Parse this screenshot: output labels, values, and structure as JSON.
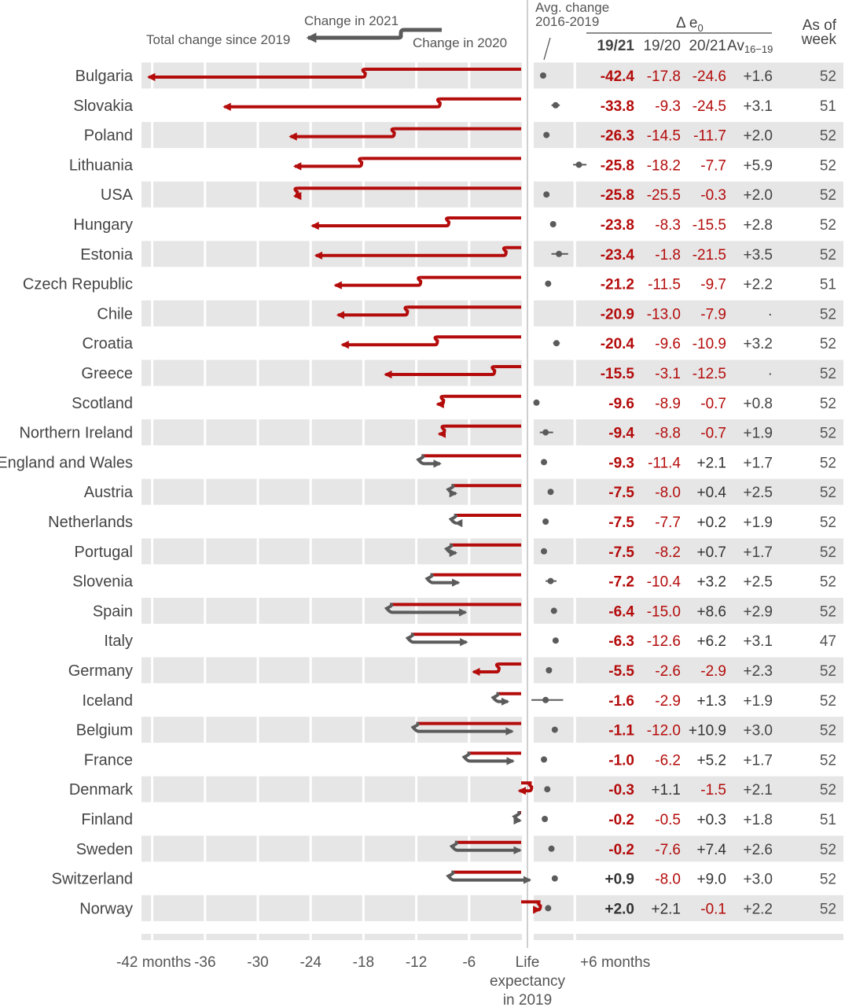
{
  "colors": {
    "red": "#b40b0b",
    "gray": "#5b5b5b",
    "band": "#e6e6e6",
    "text": "#444444"
  },
  "legend": {
    "change_2021": "Change in 2021",
    "total_change": "Total change since 2019",
    "change_2020": "Change in 2020",
    "avg_change": [
      "Avg. change",
      "2016-2019"
    ]
  },
  "table_header": {
    "delta": "Δ e",
    "delta_sub": "0",
    "col_1921": "19/21",
    "col_1920": "19/20",
    "col_2021": "20/21",
    "col_av": "Av",
    "col_av_sub": "16−19",
    "as_of": [
      "As of",
      "week"
    ]
  },
  "axis": {
    "ticks": [
      "-42 months",
      "-36",
      "-30",
      "-24",
      "-18",
      "-12",
      "-6",
      "Life",
      "+6 months"
    ],
    "tick_values": [
      -42,
      -36,
      -30,
      -24,
      -18,
      -12,
      -6,
      0,
      6
    ],
    "zero_label_extra": [
      "expectancy",
      "in 2019"
    ]
  },
  "chart_data": {
    "type": "arrow-dot-table",
    "x_unit": "months",
    "xlim": [
      -43.5,
      6.5
    ],
    "rows": [
      {
        "country": "Bulgaria",
        "d1921": "-42.4",
        "d1920": "-17.8",
        "d2021": "-24.6",
        "av": "+1.6",
        "week": "52",
        "c1920": -17.8,
        "c1921": -42.4,
        "avg": 1.6,
        "lo": null,
        "hi": null
      },
      {
        "country": "Slovakia",
        "d1921": "-33.8",
        "d1920": "-9.3",
        "d2021": "-24.5",
        "av": "+3.1",
        "week": "51",
        "c1920": -9.3,
        "c1921": -33.8,
        "avg": 3.1,
        "lo": 2.6,
        "hi": 3.6
      },
      {
        "country": "Poland",
        "d1921": "-26.3",
        "d1920": "-14.5",
        "d2021": "-11.7",
        "av": "+2.0",
        "week": "52",
        "c1920": -14.5,
        "c1921": -26.3,
        "avg": 2.0,
        "lo": null,
        "hi": null
      },
      {
        "country": "Lithuania",
        "d1921": "-25.8",
        "d1920": "-18.2",
        "d2021": "-7.7",
        "av": "+5.9",
        "week": "52",
        "c1920": -18.2,
        "c1921": -25.8,
        "avg": 5.9,
        "lo": 5.2,
        "hi": 6.8
      },
      {
        "country": "USA",
        "d1921": "-25.8",
        "d1920": "-25.5",
        "d2021": "-0.3",
        "av": "+2.0",
        "week": "52",
        "c1920": -25.5,
        "c1921": -25.8,
        "avg": 2.0,
        "lo": null,
        "hi": null
      },
      {
        "country": "Hungary",
        "d1921": "-23.8",
        "d1920": "-8.3",
        "d2021": "-15.5",
        "av": "+2.8",
        "week": "52",
        "c1920": -8.3,
        "c1921": -23.8,
        "avg": 2.8,
        "lo": null,
        "hi": null
      },
      {
        "country": "Estonia",
        "d1921": "-23.4",
        "d1920": "-1.8",
        "d2021": "-21.5",
        "av": "+3.5",
        "week": "52",
        "c1920": -1.8,
        "c1921": -23.4,
        "avg": 3.5,
        "lo": 2.6,
        "hi": 4.6
      },
      {
        "country": "Czech Republic",
        "d1921": "-21.2",
        "d1920": "-11.5",
        "d2021": "-9.7",
        "av": "+2.2",
        "week": "51",
        "c1920": -11.5,
        "c1921": -21.2,
        "avg": 2.2,
        "lo": null,
        "hi": null
      },
      {
        "country": "Chile",
        "d1921": "-20.9",
        "d1920": "-13.0",
        "d2021": "-7.9",
        "av": "·",
        "week": "52",
        "c1920": -13.0,
        "c1921": -20.9,
        "avg": null,
        "lo": null,
        "hi": null
      },
      {
        "country": "Croatia",
        "d1921": "-20.4",
        "d1920": "-9.6",
        "d2021": "-10.9",
        "av": "+3.2",
        "week": "52",
        "c1920": -9.6,
        "c1921": -20.4,
        "avg": 3.2,
        "lo": 2.8,
        "hi": 3.6
      },
      {
        "country": "Greece",
        "d1921": "-15.5",
        "d1920": "-3.1",
        "d2021": "-12.5",
        "av": "·",
        "week": "52",
        "c1920": -3.1,
        "c1921": -15.5,
        "avg": null,
        "lo": null,
        "hi": null
      },
      {
        "country": "Scotland",
        "d1921": "-9.6",
        "d1920": "-8.9",
        "d2021": "-0.7",
        "av": "+0.8",
        "week": "52",
        "c1920": -8.9,
        "c1921": -9.6,
        "avg": 0.8,
        "lo": 0.5,
        "hi": 1.1
      },
      {
        "country": "Northern Ireland",
        "d1921": "-9.4",
        "d1920": "-8.8",
        "d2021": "-0.7",
        "av": "+1.9",
        "week": "52",
        "c1920": -8.8,
        "c1921": -9.4,
        "avg": 1.9,
        "lo": 1.2,
        "hi": 2.8
      },
      {
        "country": "England and Wales",
        "d1921": "-9.3",
        "d1920": "-11.4",
        "d2021": "+2.1",
        "av": "+1.7",
        "week": "52",
        "c1920": -11.4,
        "c1921": -9.3,
        "avg": 1.7,
        "lo": null,
        "hi": null
      },
      {
        "country": "Austria",
        "d1921": "-7.5",
        "d1920": "-8.0",
        "d2021": "+0.4",
        "av": "+2.5",
        "week": "52",
        "c1920": -8.0,
        "c1921": -7.5,
        "avg": 2.5,
        "lo": null,
        "hi": null
      },
      {
        "country": "Netherlands",
        "d1921": "-7.5",
        "d1920": "-7.7",
        "d2021": "+0.2",
        "av": "+1.9",
        "week": "52",
        "c1920": -7.7,
        "c1921": -7.5,
        "avg": 1.9,
        "lo": null,
        "hi": null
      },
      {
        "country": "Portugal",
        "d1921": "-7.5",
        "d1920": "-8.2",
        "d2021": "+0.7",
        "av": "+1.7",
        "week": "52",
        "c1920": -8.2,
        "c1921": -7.5,
        "avg": 1.7,
        "lo": null,
        "hi": null
      },
      {
        "country": "Slovenia",
        "d1921": "-7.2",
        "d1920": "-10.4",
        "d2021": "+3.2",
        "av": "+2.5",
        "week": "52",
        "c1920": -10.4,
        "c1921": -7.2,
        "avg": 2.5,
        "lo": 1.9,
        "hi": 3.2
      },
      {
        "country": "Spain",
        "d1921": "-6.4",
        "d1920": "-15.0",
        "d2021": "+8.6",
        "av": "+2.9",
        "week": "52",
        "c1920": -15.0,
        "c1921": -6.4,
        "avg": 2.9,
        "lo": null,
        "hi": null
      },
      {
        "country": "Italy",
        "d1921": "-6.3",
        "d1920": "-12.6",
        "d2021": "+6.2",
        "av": "+3.1",
        "week": "47",
        "c1920": -12.6,
        "c1921": -6.3,
        "avg": 3.1,
        "lo": null,
        "hi": null
      },
      {
        "country": "Germany",
        "d1921": "-5.5",
        "d1920": "-2.6",
        "d2021": "-2.9",
        "av": "+2.3",
        "week": "52",
        "c1920": -2.6,
        "c1921": -5.5,
        "avg": 2.3,
        "lo": null,
        "hi": null
      },
      {
        "country": "Iceland",
        "d1921": "-1.6",
        "d1920": "-2.9",
        "d2021": "+1.3",
        "av": "+1.9",
        "week": "52",
        "c1920": -2.9,
        "c1921": -1.6,
        "avg": 1.9,
        "lo": 0.2,
        "hi": 4.0
      },
      {
        "country": "Belgium",
        "d1921": "-1.1",
        "d1920": "-12.0",
        "d2021": "+10.9",
        "av": "+3.0",
        "week": "52",
        "c1920": -12.0,
        "c1921": -1.1,
        "avg": 3.0,
        "lo": null,
        "hi": null
      },
      {
        "country": "France",
        "d1921": "-1.0",
        "d1920": "-6.2",
        "d2021": "+5.2",
        "av": "+1.7",
        "week": "52",
        "c1920": -6.2,
        "c1921": -1.0,
        "avg": 1.7,
        "lo": null,
        "hi": null
      },
      {
        "country": "Denmark",
        "d1921": "-0.3",
        "d1920": "+1.1",
        "d2021": "-1.5",
        "av": "+2.1",
        "week": "52",
        "c1920": 1.1,
        "c1921": -0.3,
        "avg": 2.1,
        "lo": null,
        "hi": null
      },
      {
        "country": "Finland",
        "d1921": "-0.2",
        "d1920": "-0.5",
        "d2021": "+0.3",
        "av": "+1.8",
        "week": "51",
        "c1920": -0.5,
        "c1921": -0.2,
        "avg": 1.8,
        "lo": null,
        "hi": null
      },
      {
        "country": "Sweden",
        "d1921": "-0.2",
        "d1920": "-7.6",
        "d2021": "+7.4",
        "av": "+2.6",
        "week": "52",
        "c1920": -7.6,
        "c1921": -0.2,
        "avg": 2.6,
        "lo": null,
        "hi": null
      },
      {
        "country": "Switzerland",
        "d1921": "+0.9",
        "d1920": "-8.0",
        "d2021": "+9.0",
        "av": "+3.0",
        "week": "52",
        "c1920": -8.0,
        "c1921": 0.9,
        "avg": 3.0,
        "lo": null,
        "hi": null
      },
      {
        "country": "Norway",
        "d1921": "+2.0",
        "d1920": "+2.1",
        "d2021": "-0.1",
        "av": "+2.2",
        "week": "52",
        "c1920": 2.1,
        "c1921": 2.0,
        "avg": 2.2,
        "lo": null,
        "hi": null
      }
    ]
  }
}
